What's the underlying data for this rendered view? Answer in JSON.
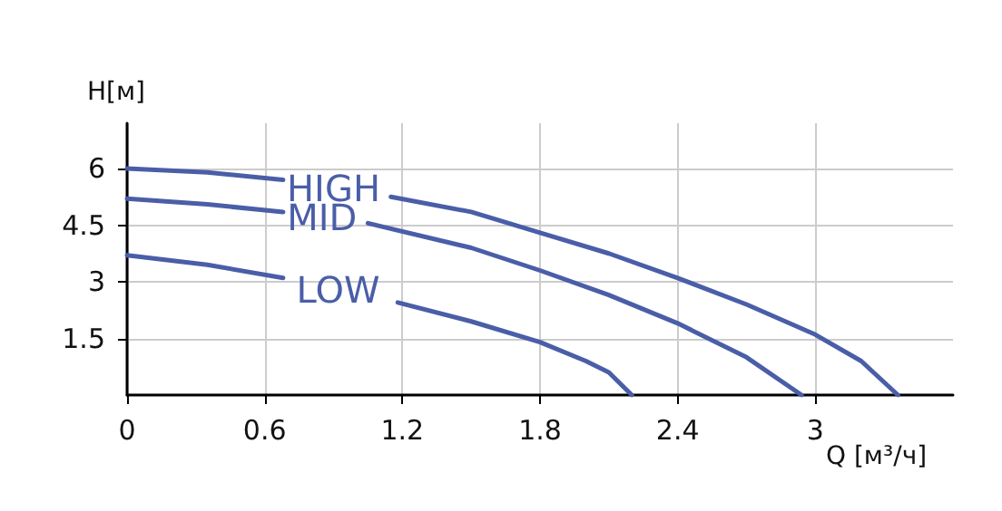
{
  "chart_data": {
    "type": "line",
    "xlabel": "Q [м³/ч]",
    "ylabel": "H[м]",
    "xlim": [
      0,
      3.6
    ],
    "xticks": [
      0,
      0.6,
      1.2,
      1.8,
      2.4,
      3
    ],
    "ylim": [
      0,
      7.2
    ],
    "yticks": [
      1.5,
      3,
      4.5,
      6
    ],
    "grid": true,
    "legend": false,
    "marker": "none",
    "line_style": "solid",
    "series": [
      {
        "name": "HIGH",
        "color": "#4a5ea8",
        "x": [
          0,
          0.35,
          0.68,
          0.9,
          1.15,
          1.5,
          1.8,
          2.1,
          2.4,
          2.7,
          3.0,
          3.2,
          3.36
        ],
        "values": [
          6,
          5.9,
          5.7,
          null,
          5.25,
          4.85,
          4.3,
          3.75,
          3.1,
          2.4,
          1.6,
          0.9,
          0
        ]
      },
      {
        "name": "MID",
        "color": "#4a5ea8",
        "x": [
          0,
          0.35,
          0.68,
          0.85,
          1.05,
          1.5,
          1.8,
          2.1,
          2.4,
          2.7,
          2.94
        ],
        "values": [
          5.2,
          5.05,
          4.85,
          null,
          4.55,
          3.9,
          3.3,
          2.65,
          1.9,
          1.0,
          0
        ]
      },
      {
        "name": "LOW",
        "color": "#4a5ea8",
        "x": [
          0,
          0.35,
          0.68,
          0.92,
          1.18,
          1.5,
          1.8,
          2.0,
          2.1,
          2.2
        ],
        "values": [
          3.7,
          3.45,
          3.1,
          null,
          2.45,
          1.95,
          1.4,
          0.9,
          0.6,
          0
        ]
      }
    ]
  }
}
